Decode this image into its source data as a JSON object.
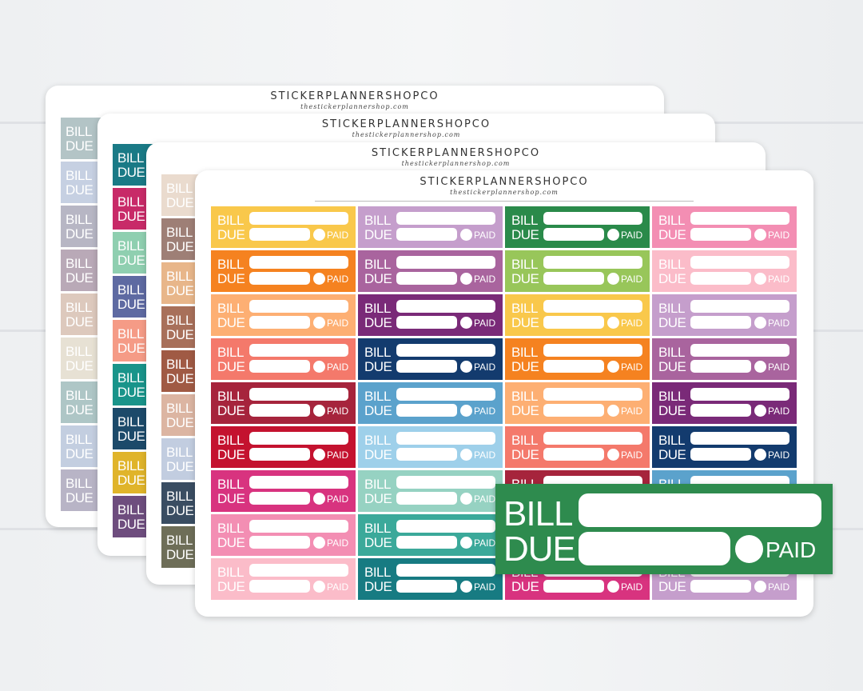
{
  "brand": "STICKERPLANNERSHOPCO",
  "url": "thestickerplannershop.com",
  "sticker": {
    "bill": "BILL",
    "due": "DUE",
    "paid": "PAID"
  },
  "sheets": [
    {
      "colors": [
        "#b3c4c6",
        "#c6d0e2",
        "#b7b6c4",
        "#b9a9b7",
        "#ddc9bd",
        "#e7e1d4",
        "#aec6c6",
        "#c3cee0",
        "#b8b4c6"
      ]
    },
    {
      "colors": [
        "#1a7a86",
        "#c82a68",
        "#8fcfb0",
        "#5e6aa2",
        "#f59b86",
        "#19948a",
        "#1c4a6a",
        "#e0b42a",
        "#6e4d7e"
      ]
    },
    {
      "colors": [
        "#eadbce",
        "#9e7f76",
        "#e8b68a",
        "#a8705a",
        "#a05a44",
        "#dcb5a2",
        "#c2cde0",
        "#3a4d62",
        "#6e6e58"
      ]
    },
    {
      "columns": [
        [
          "#f9c84b",
          "#f58220",
          "#fdaf73",
          "#f4796b",
          "#a6243c",
          "#c4122f",
          "#d8337f",
          "#f38eb3",
          "#fbbcc9"
        ],
        [
          "#c59ecc",
          "#a9649e",
          "#7a2a78",
          "#133b6e",
          "#5ba2cc",
          "#9ed0ea",
          "#96d2c2",
          "#3ba99a",
          "#177b82"
        ],
        [
          "#2a8a4a",
          "#98c65a",
          "#f9c84b",
          "#f58220",
          "#fdaf73",
          "#f4796b",
          "#a6243c",
          "#c4122f",
          "#d8337f"
        ],
        [
          "#f38eb3",
          "#fbbcc9",
          "#c59ecc",
          "#a9649e",
          "#7a2a78",
          "#133b6e",
          "#5ba2cc",
          "#9ed0ea",
          "#c59ecc"
        ]
      ]
    }
  ],
  "zoom_color": "#2e8b4e"
}
